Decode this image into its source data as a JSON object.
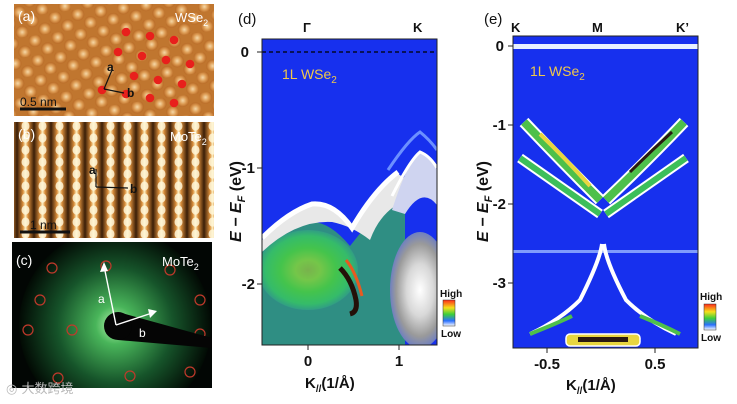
{
  "panel_a": {
    "label": "(a)",
    "material": "WSe",
    "sub": "2",
    "vec_a": "a",
    "vec_b": "b",
    "scale": "0.5 nm"
  },
  "panel_b": {
    "label": "(b)",
    "material": "MoTe",
    "sub": "2",
    "vec_a": "a",
    "vec_b": "b",
    "scale": "1 nm"
  },
  "panel_c": {
    "label": "(c)",
    "material": "MoTe",
    "sub": "2",
    "vec_a": "a",
    "vec_b": "b"
  },
  "panel_d": {
    "label": "(d)",
    "inset": "1L WSe",
    "inset_sub": "2",
    "k_gamma": "Γ",
    "k_k": "K",
    "y_ticks": [
      "0",
      "-1",
      "-2"
    ],
    "x_ticks": [
      "0",
      "1"
    ],
    "ylabel_main": "E − E",
    "ylabel_sub": "F",
    "ylabel_unit": " (eV)",
    "xlabel": "K",
    "xlabel_sub": "//",
    "xlabel_unit": "(1/Å)",
    "cb_high": "High",
    "cb_low": "Low"
  },
  "panel_e": {
    "label": "(e)",
    "inset": "1L WSe",
    "inset_sub": "2",
    "k_k": "K",
    "k_m": "M",
    "k_kp": "K’",
    "y_ticks": [
      "0",
      "-1",
      "-2",
      "-3"
    ],
    "x_ticks": [
      "-0.5",
      "0.5"
    ],
    "ylabel_main": "E − E",
    "ylabel_sub": "F",
    "ylabel_unit": " (eV)",
    "xlabel": "K",
    "xlabel_sub": "//",
    "xlabel_unit": "(1/Å)",
    "cb_high": "High",
    "cb_low": "Low"
  },
  "watermark": "大数跨境",
  "colors": {
    "stm_orange": "#d38a3c",
    "arpes_blue": "#1732e8",
    "leed_green": "#3aa95a",
    "dot_red": "#e8201c",
    "inset_yellow": "#f0c84a"
  }
}
